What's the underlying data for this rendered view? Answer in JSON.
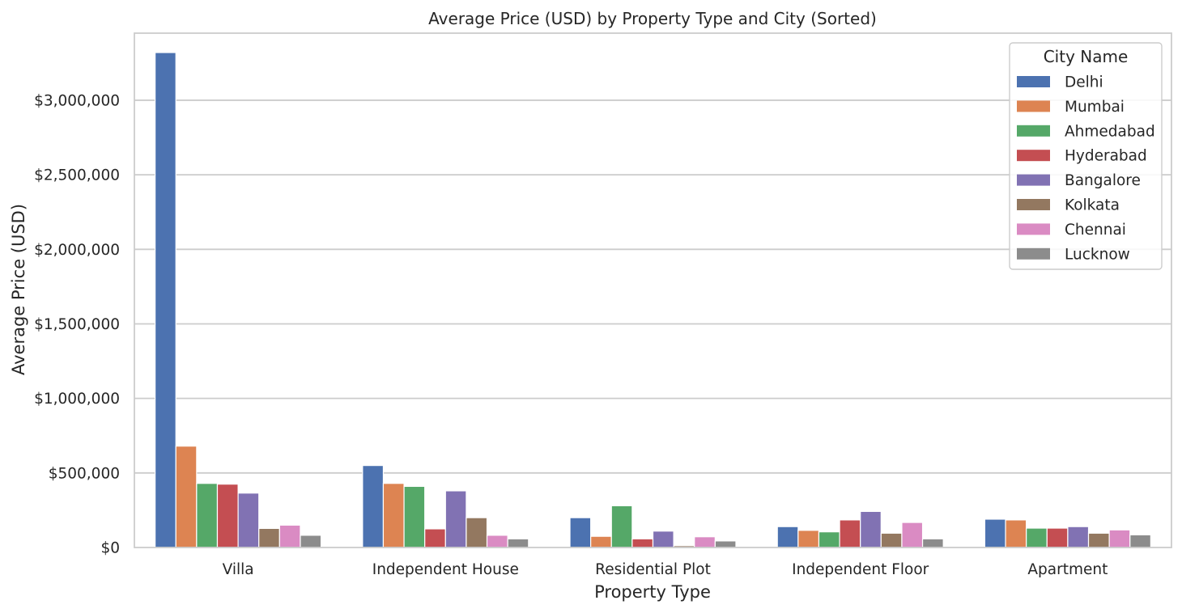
{
  "chart_data": {
    "type": "bar",
    "title": "Average Price (USD) by Property Type and City (Sorted)",
    "xlabel": "Property Type",
    "ylabel": "Average Price (USD)",
    "ylim": [
      0,
      3450000
    ],
    "yticks": [
      0,
      500000,
      1000000,
      1500000,
      2000000,
      2500000,
      3000000
    ],
    "ytick_labels": [
      "$0",
      "$500,000",
      "$1,000,000",
      "$1,500,000",
      "$2,000,000",
      "$2,500,000",
      "$3,000,000"
    ],
    "grid": "horizontal",
    "legend": {
      "title": "City Name",
      "position": "top-right"
    },
    "categories": [
      "Villa",
      "Independent House",
      "Residential Plot",
      "Independent Floor",
      "Apartment"
    ],
    "series": [
      {
        "name": "Delhi",
        "color": "#4c72b0",
        "values": [
          3320000,
          550000,
          200000,
          140000,
          190000
        ]
      },
      {
        "name": "Mumbai",
        "color": "#dd8452",
        "values": [
          680000,
          430000,
          75000,
          115000,
          185000
        ]
      },
      {
        "name": "Ahmedabad",
        "color": "#55a868",
        "values": [
          430000,
          410000,
          280000,
          105000,
          130000
        ]
      },
      {
        "name": "Hyderabad",
        "color": "#c44e52",
        "values": [
          425000,
          125000,
          58000,
          185000,
          130000
        ]
      },
      {
        "name": "Bangalore",
        "color": "#8172b3",
        "values": [
          365000,
          380000,
          110000,
          242000,
          140000
        ]
      },
      {
        "name": "Kolkata",
        "color": "#937860",
        "values": [
          128000,
          200000,
          12000,
          96000,
          96000
        ]
      },
      {
        "name": "Chennai",
        "color": "#da8bc3",
        "values": [
          150000,
          82000,
          72000,
          168000,
          118000
        ]
      },
      {
        "name": "Lucknow",
        "color": "#8c8c8c",
        "values": [
          82000,
          58000,
          44000,
          58000,
          85000
        ]
      }
    ]
  }
}
